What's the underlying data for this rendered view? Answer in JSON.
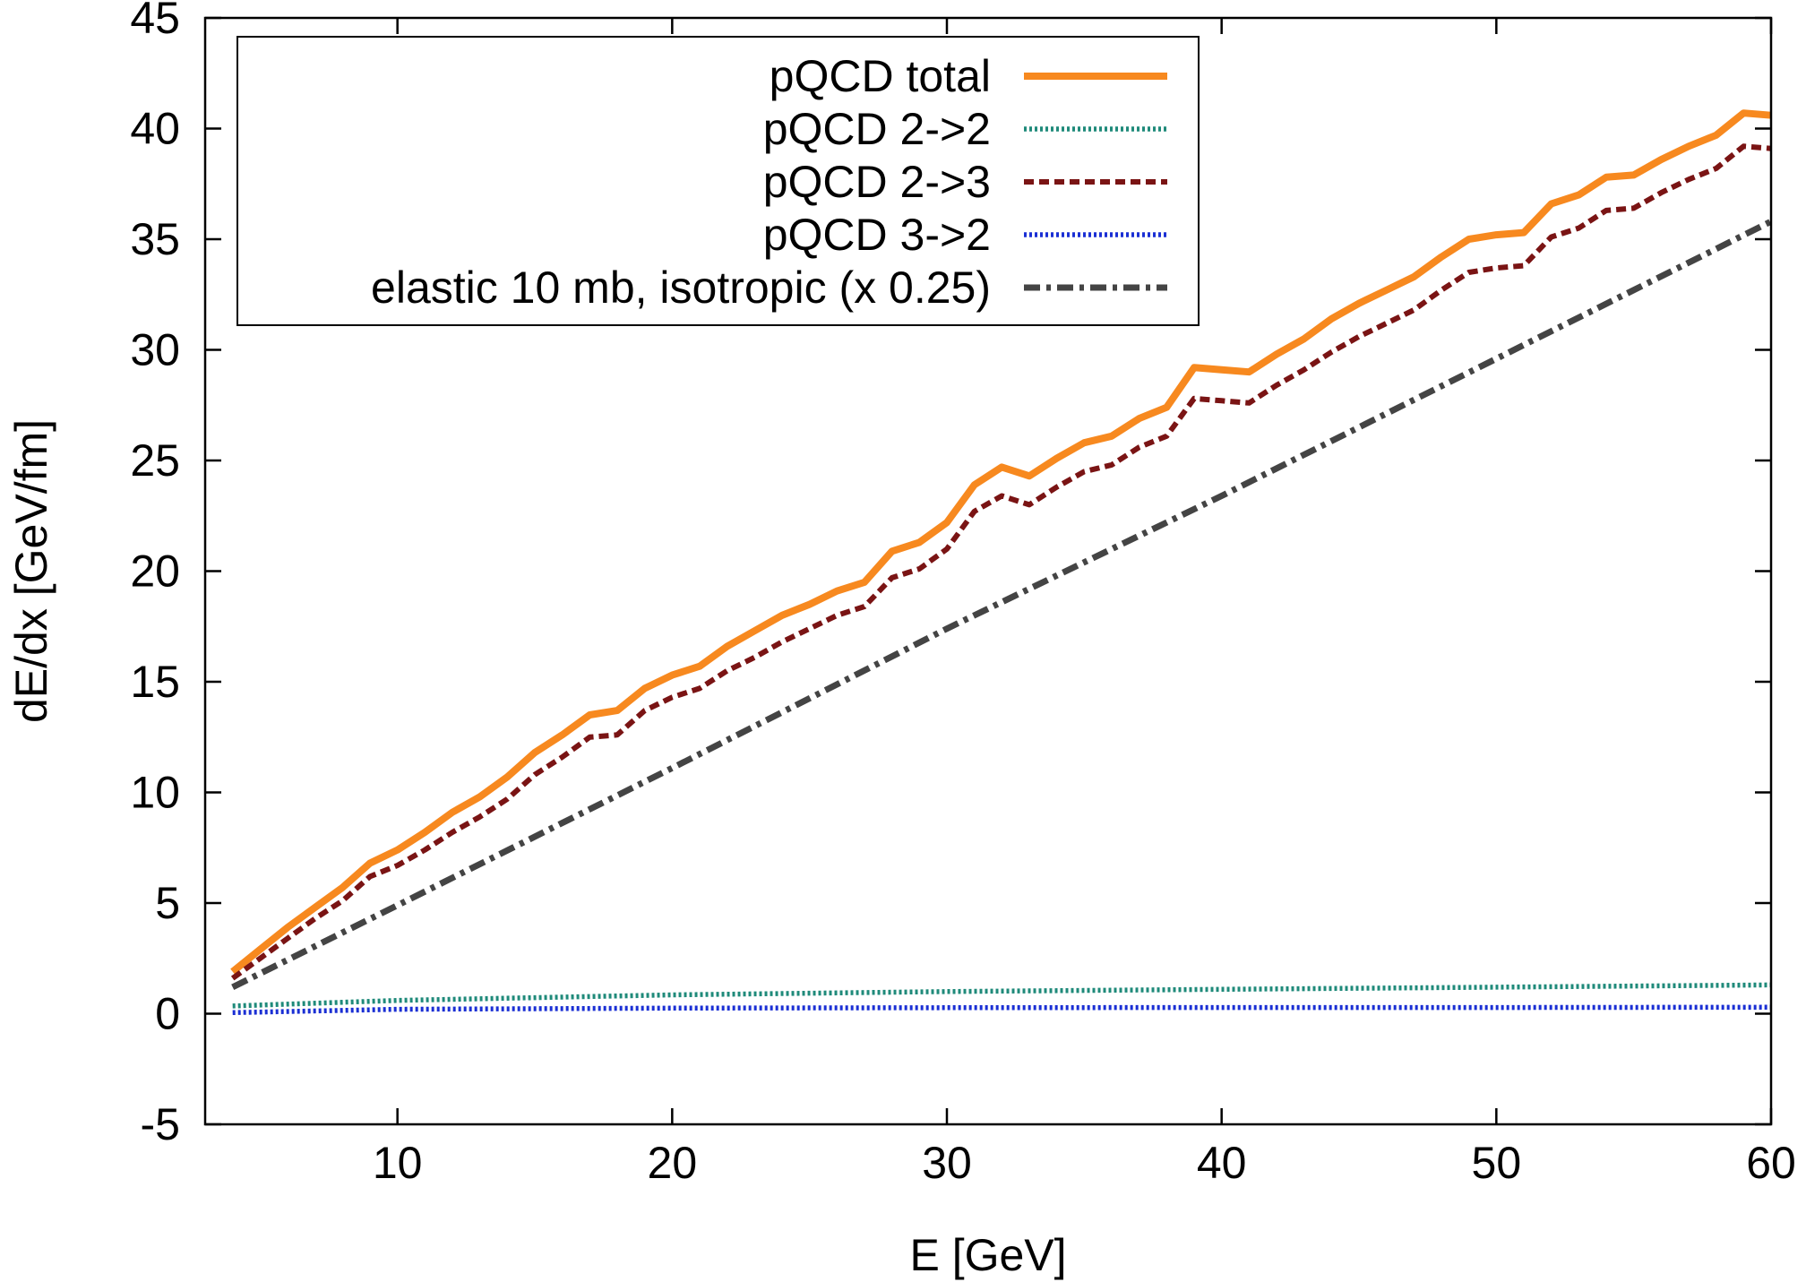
{
  "chart_data": {
    "type": "line",
    "title": "",
    "xlabel": "E [GeV]",
    "ylabel": "dE/dx [GeV/fm]",
    "xlim": [
      3,
      60
    ],
    "ylim": [
      -5,
      45
    ],
    "xticks": [
      10,
      20,
      30,
      40,
      50,
      60
    ],
    "yticks": [
      -5,
      0,
      5,
      10,
      15,
      20,
      25,
      30,
      35,
      40,
      45
    ],
    "grid": false,
    "legend_position": "top-left",
    "series": [
      {
        "name": "pQCD total",
        "color": "#f7891f",
        "style": "solid",
        "x": [
          4,
          5,
          6,
          7,
          8,
          9,
          10,
          11,
          12,
          13,
          14,
          15,
          16,
          17,
          18,
          19,
          20,
          21,
          22,
          23,
          24,
          25,
          26,
          27,
          28,
          29,
          30,
          31,
          32,
          33,
          34,
          35,
          36,
          37,
          38,
          39,
          40,
          41,
          42,
          43,
          44,
          45,
          46,
          47,
          48,
          49,
          50,
          51,
          52,
          53,
          54,
          55,
          56,
          57,
          58,
          59,
          60
        ],
        "y": [
          1.9,
          2.9,
          3.9,
          4.8,
          5.7,
          6.8,
          7.4,
          8.2,
          9.1,
          9.8,
          10.7,
          11.8,
          12.6,
          13.5,
          13.7,
          14.7,
          15.3,
          15.7,
          16.6,
          17.3,
          18.0,
          18.5,
          19.1,
          19.5,
          20.9,
          21.3,
          22.2,
          23.9,
          24.7,
          24.3,
          25.1,
          25.8,
          26.1,
          26.9,
          27.4,
          29.2,
          29.1,
          29.0,
          29.8,
          30.5,
          31.4,
          32.1,
          32.7,
          33.3,
          34.2,
          35.0,
          35.2,
          35.3,
          36.6,
          37.0,
          37.8,
          37.9,
          38.6,
          39.2,
          39.7,
          40.7,
          40.6
        ]
      },
      {
        "name": "pQCD 2->2",
        "color": "#1f8a7a",
        "style": "dotted",
        "x": [
          4,
          10,
          20,
          30,
          40,
          50,
          60
        ],
        "y": [
          0.35,
          0.6,
          0.85,
          1.0,
          1.1,
          1.2,
          1.3
        ]
      },
      {
        "name": "pQCD 2->3",
        "color": "#7a1414",
        "style": "dashed",
        "x": [
          4,
          5,
          6,
          7,
          8,
          9,
          10,
          11,
          12,
          13,
          14,
          15,
          16,
          17,
          18,
          19,
          20,
          21,
          22,
          23,
          24,
          25,
          26,
          27,
          28,
          29,
          30,
          31,
          32,
          33,
          34,
          35,
          36,
          37,
          38,
          39,
          40,
          41,
          42,
          43,
          44,
          45,
          46,
          47,
          48,
          49,
          50,
          51,
          52,
          53,
          54,
          55,
          56,
          57,
          58,
          59,
          60
        ],
        "y": [
          1.6,
          2.5,
          3.4,
          4.3,
          5.1,
          6.2,
          6.7,
          7.4,
          8.2,
          8.9,
          9.7,
          10.8,
          11.6,
          12.5,
          12.6,
          13.7,
          14.3,
          14.7,
          15.5,
          16.1,
          16.8,
          17.4,
          18.0,
          18.4,
          19.7,
          20.1,
          21.0,
          22.7,
          23.4,
          23.0,
          23.8,
          24.5,
          24.8,
          25.6,
          26.1,
          27.8,
          27.7,
          27.6,
          28.4,
          29.1,
          29.9,
          30.6,
          31.2,
          31.8,
          32.7,
          33.5,
          33.7,
          33.8,
          35.1,
          35.5,
          36.3,
          36.4,
          37.1,
          37.7,
          38.2,
          39.2,
          39.1
        ]
      },
      {
        "name": "pQCD 3->2",
        "color": "#1a2fd4",
        "style": "dotted",
        "x": [
          4,
          10,
          20,
          30,
          40,
          50,
          60
        ],
        "y": [
          0.05,
          0.2,
          0.25,
          0.27,
          0.28,
          0.28,
          0.29
        ]
      },
      {
        "name": "elastic 10 mb, isotropic (x 0.25)",
        "color": "#444444",
        "style": "dashdot",
        "x": [
          4,
          10,
          20,
          30,
          40,
          50,
          60
        ],
        "y": [
          1.2,
          4.9,
          11.1,
          17.4,
          23.4,
          29.6,
          35.8
        ]
      }
    ]
  }
}
